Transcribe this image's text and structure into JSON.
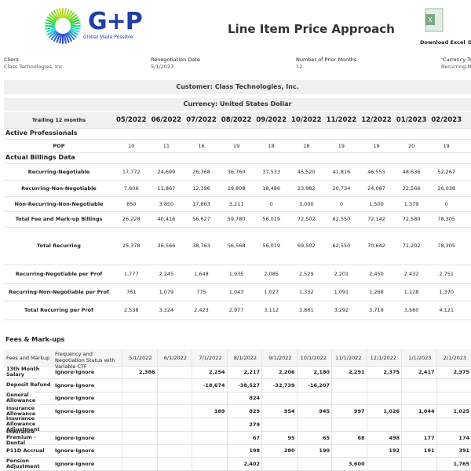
{
  "header": {
    "logo": "G+P",
    "tagline": "Global Made Possible",
    "title": "Line Item Price Approach",
    "download_excel": "Download Excel",
    "download_other": "D"
  },
  "info": [
    {
      "label": "Client",
      "value": "Class Technologies, Inc."
    },
    {
      "label": "Renegotiation Date",
      "value": "5/1/2023"
    },
    {
      "label": "Number of Prior Months",
      "value": "12"
    },
    {
      "label": "'Currency Tra",
      "value": "Recurring-No"
    }
  ],
  "customer": "Customer: Class Technologies, Inc.",
  "currency": "Currency: United States Dollar",
  "summary": {
    "header": "Trailing 12 months",
    "months": [
      "05/2022",
      "06/2022",
      "07/2022",
      "08/2022",
      "09/2022",
      "10/2022",
      "11/2022",
      "12/2022",
      "01/2023",
      "02/2023"
    ],
    "sections": [
      {
        "title": "Active Professionals",
        "rows": [
          {
            "label": "POP",
            "cells": [
              "10",
              "11",
              "16",
              "19",
              "18",
              "18",
              "19",
              "19",
              "20",
              "19"
            ]
          }
        ]
      },
      {
        "title": "Actual Billings Data",
        "rows": [
          {
            "label": "Recurring-Negotiable",
            "cells": [
              "17,772",
              "24,699",
              "26,368",
              "36,760",
              "37,533",
              "45,520",
              "41,816",
              "46,555",
              "48,636",
              "52,267"
            ]
          },
          {
            "label": "Recurring-Non-Negotiable",
            "cells": [
              "7,606",
              "11,867",
              "12,396",
              "19,808",
              "18,486",
              "23,982",
              "20,734",
              "24,087",
              "22,566",
              "26,038"
            ]
          },
          {
            "label": "Non-Recurring-Non-Negotiable",
            "cells": [
              "850",
              "3,850",
              "17,863",
              "3,211",
              "0",
              "3,000",
              "0",
              "1,500",
              "1,379",
              "0"
            ]
          },
          {
            "label": "Total Fee and Mark-up Billings",
            "cells": [
              "26,228",
              "40,416",
              "56,627",
              "59,780",
              "56,019",
              "72,502",
              "62,550",
              "72,142",
              "72,580",
              "78,305"
            ]
          },
          {
            "label": "Total Recurring",
            "cells": [
              "25,378",
              "36,566",
              "38,763",
              "56,568",
              "56,019",
              "69,502",
              "62,550",
              "70,642",
              "71,202",
              "78,305"
            ]
          },
          {
            "label": "Recurring-Negotiable per Prof",
            "cells": [
              "1,777",
              "2,245",
              "1,648",
              "1,935",
              "2,085",
              "2,529",
              "2,201",
              "2,450",
              "2,432",
              "2,751"
            ]
          },
          {
            "label": "Recurring-Non-Negotiable per Prof",
            "cells": [
              "761",
              "1,079",
              "775",
              "1,043",
              "1,027",
              "1,332",
              "1,091",
              "1,268",
              "1,128",
              "1,370"
            ]
          },
          {
            "label": "Total Recurring per Prof",
            "cells": [
              "2,538",
              "3,324",
              "2,423",
              "2,977",
              "3,112",
              "3,861",
              "3,292",
              "3,718",
              "3,560",
              "4,121"
            ]
          }
        ]
      }
    ]
  },
  "fees": {
    "title": "Fees & Mark-ups",
    "columns": [
      "Fees and Markup",
      "Frequency and Negotiation Status with Variable CTF",
      "5/1/2022",
      "6/1/2022",
      "7/1/2022",
      "8/1/2022",
      "9/1/2022",
      "10/1/2022",
      "11/1/2022",
      "12/1/2022",
      "1/1/2023",
      "2/1/2023"
    ],
    "rows": [
      {
        "label": "13th Month Salary",
        "status": "Ignore-Ignore",
        "cells": [
          "2,386",
          null,
          "2,254",
          "2,217",
          "2,206",
          "2,180",
          "2,291",
          "2,375",
          "2,417",
          "2,375"
        ]
      },
      {
        "label": "Deposit Refund",
        "status": "Ignore-Ignore",
        "cells": [
          null,
          null,
          "-18,674",
          "-38,527",
          "-32,739",
          "-16,207",
          null,
          null,
          null,
          null
        ]
      },
      {
        "label": "General Allowance",
        "status": "Ignore-Ignore",
        "cells": [
          null,
          null,
          null,
          "824",
          null,
          null,
          null,
          null,
          null,
          null
        ]
      },
      {
        "label": "Insurance Allowance",
        "status": "Ignore-Ignore",
        "cells": [
          null,
          null,
          "189",
          "829",
          "954",
          "945",
          "997",
          "1,026",
          "1,044",
          "1,025"
        ]
      },
      {
        "label": "Insurance Allowance Adjustment",
        "status": null,
        "cells": [
          null,
          null,
          null,
          "279",
          null,
          null,
          null,
          null,
          null,
          null
        ]
      },
      {
        "label": "Insurance Premium - Dental",
        "status": "Ignore-Ignore",
        "cells": [
          null,
          null,
          null,
          "67",
          "95",
          "65",
          "68",
          "498",
          "177",
          "174"
        ]
      },
      {
        "label": "P11D Accrual",
        "status": "Ignore-Ignore",
        "cells": [
          null,
          null,
          null,
          "198",
          "280",
          "190",
          null,
          "192",
          "191",
          "391"
        ]
      },
      {
        "label": "Pension Adjustment",
        "status": "Ignore-Ignore",
        "cells": [
          null,
          null,
          null,
          "2,402",
          null,
          null,
          "3,600",
          null,
          null,
          "1,765"
        ]
      }
    ]
  }
}
